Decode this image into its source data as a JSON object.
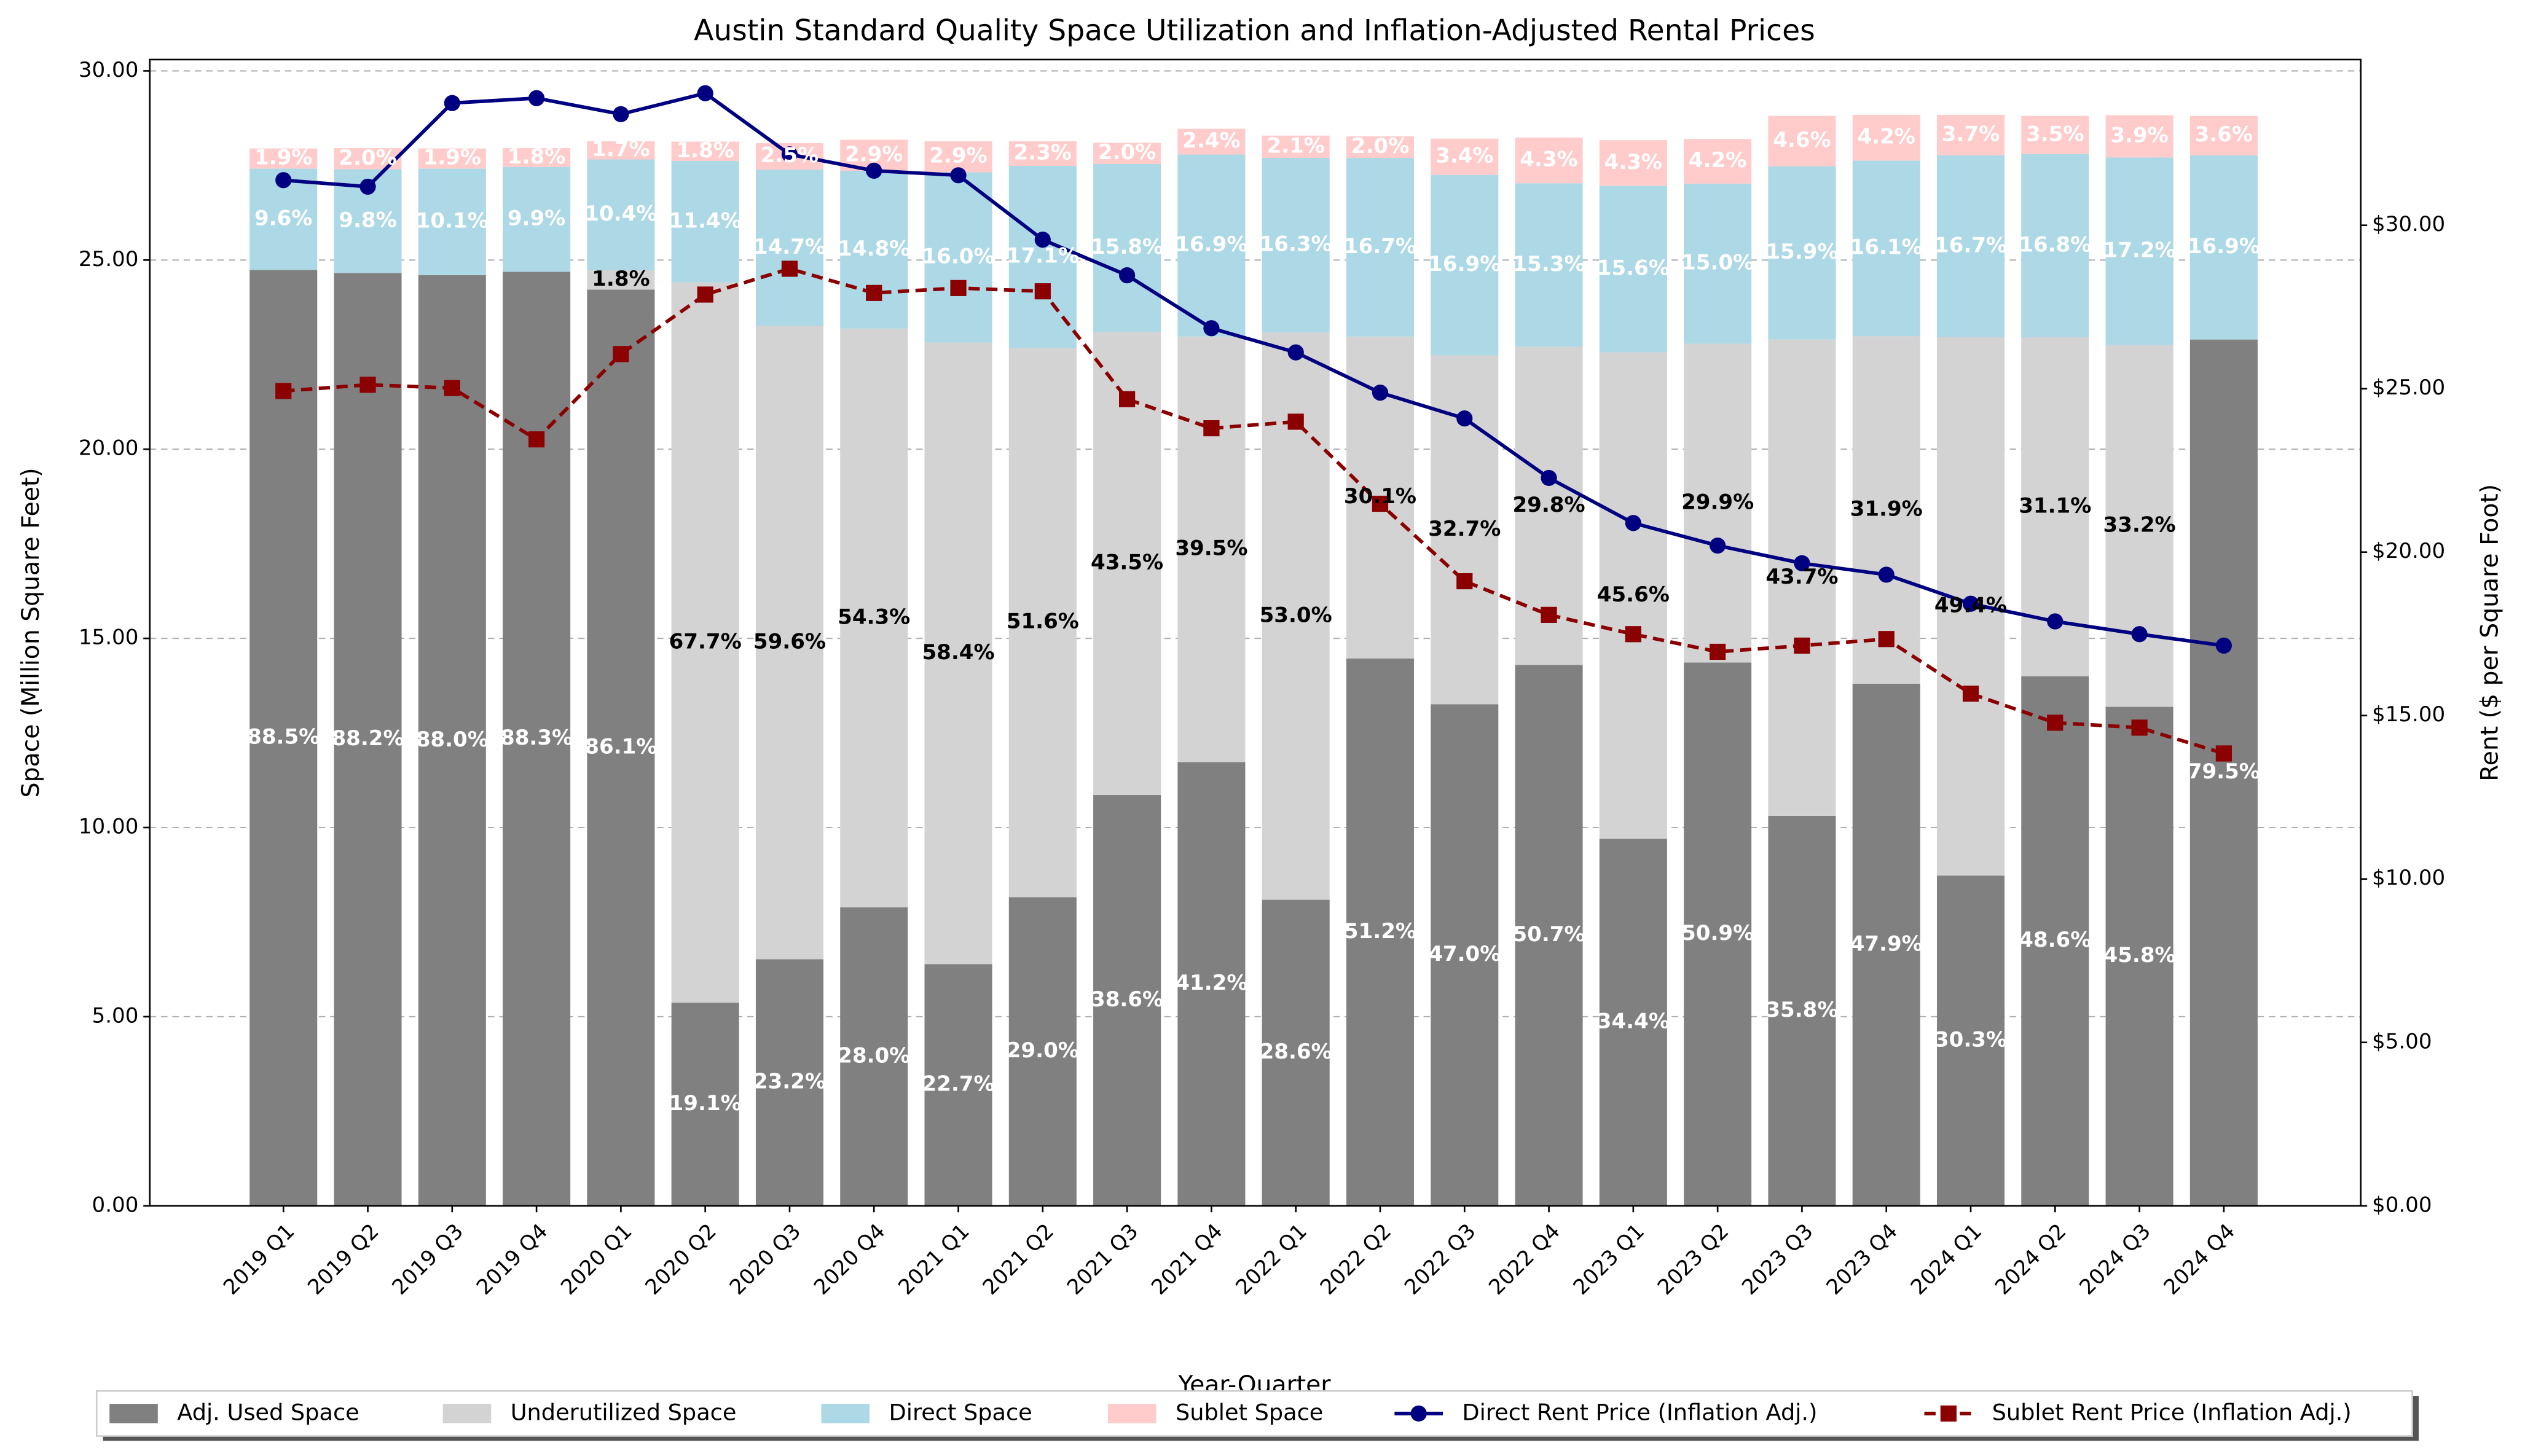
{
  "chart_data": {
    "type": "bar",
    "stacked": true,
    "title": "Austin Standard Quality Space Utilization and Inflation-Adjusted Rental Prices",
    "xlabel": "Year-Quarter",
    "ylabel": "Space (Million Square Feet)",
    "y2label": "Rent ($ per Square Foot)",
    "categories": [
      "2019 Q1",
      "2019 Q2",
      "2019 Q3",
      "2019 Q4",
      "2020 Q1",
      "2020 Q2",
      "2020 Q3",
      "2020 Q4",
      "2021 Q1",
      "2021 Q2",
      "2021 Q3",
      "2021 Q4",
      "2022 Q1",
      "2022 Q2",
      "2022 Q3",
      "2022 Q4",
      "2023 Q1",
      "2023 Q2",
      "2023 Q3",
      "2023 Q4",
      "2024 Q1",
      "2024 Q2",
      "2024 Q3",
      "2024 Q4"
    ],
    "ylim": [
      0,
      30.3
    ],
    "yticks": [
      {
        "value": 0,
        "label": "0.00"
      },
      {
        "value": 5,
        "label": "5.00"
      },
      {
        "value": 10,
        "label": "10.00"
      },
      {
        "value": 15,
        "label": "15.00"
      },
      {
        "value": 20,
        "label": "20.00"
      },
      {
        "value": 25,
        "label": "25.00"
      },
      {
        "value": 30,
        "label": "30.00"
      }
    ],
    "y2lim": [
      0,
      35.07
    ],
    "y2ticks": [
      {
        "value": 0,
        "label": "$0.00"
      },
      {
        "value": 5,
        "label": "$5.00"
      },
      {
        "value": 10,
        "label": "$10.00"
      },
      {
        "value": 15,
        "label": "$15.00"
      },
      {
        "value": 20,
        "label": "$20.00"
      },
      {
        "value": 25,
        "label": "$25.00"
      },
      {
        "value": 30,
        "label": "$30.00"
      }
    ],
    "grid": true,
    "legend": "bottom",
    "series": [
      {
        "name": "Adj. Used Space",
        "type": "bar",
        "color": "#808080",
        "label_color": "#ffffff",
        "values": [
          24.74,
          24.66,
          24.6,
          24.69,
          24.22,
          5.37,
          6.52,
          7.89,
          6.39,
          8.16,
          10.86,
          11.73,
          8.09,
          14.47,
          13.26,
          14.3,
          9.7,
          14.36,
          10.31,
          13.8,
          8.73,
          14.0,
          13.19,
          22.9
        ],
        "value_labels": [
          "88.5%",
          "88.2%",
          "88.0%",
          "88.3%",
          "86.1%",
          "19.1%",
          "23.2%",
          "28.0%",
          "22.7%",
          "29.0%",
          "38.6%",
          "41.2%",
          "28.6%",
          "51.2%",
          "47.0%",
          "50.7%",
          "34.4%",
          "50.9%",
          "35.8%",
          "47.9%",
          "30.3%",
          "48.6%",
          "45.8%",
          "79.5%"
        ]
      },
      {
        "name": "Underutilized Space",
        "type": "bar",
        "color": "#d3d3d3",
        "label_color": "#000000",
        "values": [
          0,
          0,
          0,
          0,
          0.51,
          19.04,
          16.74,
          15.3,
          16.43,
          14.52,
          12.24,
          11.25,
          15.0,
          8.51,
          9.22,
          8.41,
          12.86,
          8.43,
          12.59,
          9.19,
          14.23,
          8.96,
          9.56,
          0
        ],
        "value_labels": [
          null,
          null,
          null,
          null,
          "1.8%",
          "67.7%",
          "59.6%",
          "54.3%",
          "58.4%",
          "51.6%",
          "43.5%",
          "39.5%",
          "53.0%",
          "30.1%",
          "32.7%",
          "29.8%",
          "45.6%",
          "29.9%",
          "43.7%",
          "31.9%",
          "49.4%",
          "31.1%",
          "33.2%",
          null
        ]
      },
      {
        "name": "Direct Space",
        "type": "bar",
        "color": "#add8e6",
        "label_color": "#ffffff",
        "values": [
          2.68,
          2.74,
          2.82,
          2.77,
          2.93,
          3.21,
          4.13,
          4.17,
          4.5,
          4.81,
          4.44,
          4.81,
          4.61,
          4.72,
          4.77,
          4.32,
          4.4,
          4.23,
          4.58,
          4.64,
          4.81,
          4.84,
          4.96,
          4.87
        ],
        "value_labels": [
          "9.6%",
          "9.8%",
          "10.1%",
          "9.9%",
          "10.4%",
          "11.4%",
          "14.7%",
          "14.8%",
          "16.0%",
          "17.1%",
          "15.8%",
          "16.9%",
          "16.3%",
          "16.7%",
          "16.9%",
          "15.3%",
          "15.6%",
          "15.0%",
          "15.9%",
          "16.1%",
          "16.7%",
          "16.8%",
          "17.2%",
          "16.9%"
        ]
      },
      {
        "name": "Sublet Space",
        "type": "bar",
        "color": "#ffcccb",
        "label_color": "#ffffff",
        "values": [
          0.53,
          0.56,
          0.53,
          0.5,
          0.48,
          0.51,
          0.7,
          0.82,
          0.82,
          0.65,
          0.56,
          0.68,
          0.59,
          0.57,
          0.96,
          1.21,
          1.21,
          1.18,
          1.33,
          1.21,
          1.07,
          1.01,
          1.12,
          1.04
        ],
        "value_labels": [
          "1.9%",
          "2.0%",
          "1.9%",
          "1.8%",
          "1.7%",
          "1.8%",
          "2.5%",
          "2.9%",
          "2.9%",
          "2.3%",
          "2.0%",
          "2.4%",
          "2.1%",
          "2.0%",
          "3.4%",
          "4.3%",
          "4.3%",
          "4.2%",
          "4.6%",
          "4.2%",
          "3.7%",
          "3.5%",
          "3.9%",
          "3.6%"
        ]
      },
      {
        "name": "Direct Rent Price (Inflation Adj.)",
        "type": "line",
        "axis": "y2",
        "color": "#000080",
        "marker": "circle",
        "dashed": false,
        "values": [
          31.38,
          31.18,
          33.74,
          33.89,
          33.4,
          34.04,
          32.17,
          31.67,
          31.53,
          29.56,
          28.47,
          26.85,
          26.11,
          24.88,
          24.09,
          22.27,
          20.89,
          20.2,
          19.66,
          19.31,
          18.42,
          17.88,
          17.49,
          17.14
        ]
      },
      {
        "name": "Sublet Rent Price (Inflation Adj.)",
        "type": "line",
        "axis": "y2",
        "color": "#8b0000",
        "marker": "square",
        "dashed": true,
        "values": [
          24.93,
          25.12,
          25.02,
          23.45,
          26.06,
          27.88,
          28.67,
          27.93,
          28.08,
          27.98,
          24.68,
          23.79,
          23.99,
          21.48,
          19.11,
          18.08,
          17.49,
          16.95,
          17.14,
          17.34,
          15.67,
          14.78,
          14.63,
          13.84
        ]
      }
    ]
  }
}
